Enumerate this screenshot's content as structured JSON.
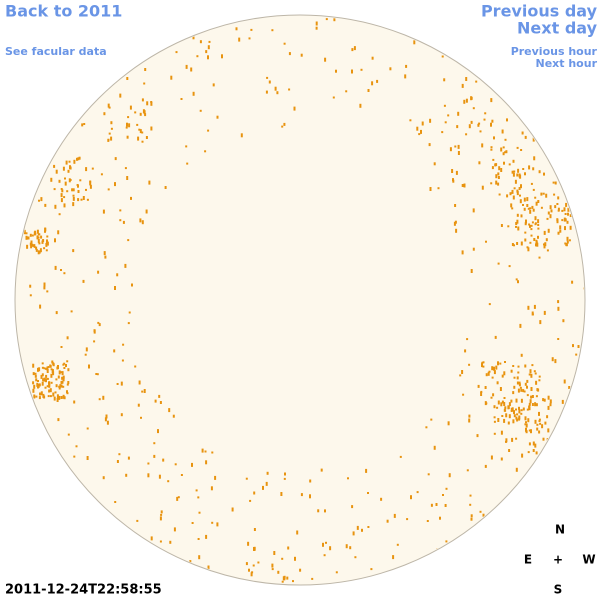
{
  "nav": {
    "back_year": "Back to 2011",
    "facular": "See facular data",
    "previous_day": "Previous day",
    "next_day": "Next day",
    "previous_hour": "Previous hour",
    "next_hour": "Next hour"
  },
  "compass": {
    "north": "N",
    "east": "E",
    "center": "+",
    "west": "W",
    "south": "S"
  },
  "timestamp": "2011-12-24T22:58:55"
}
